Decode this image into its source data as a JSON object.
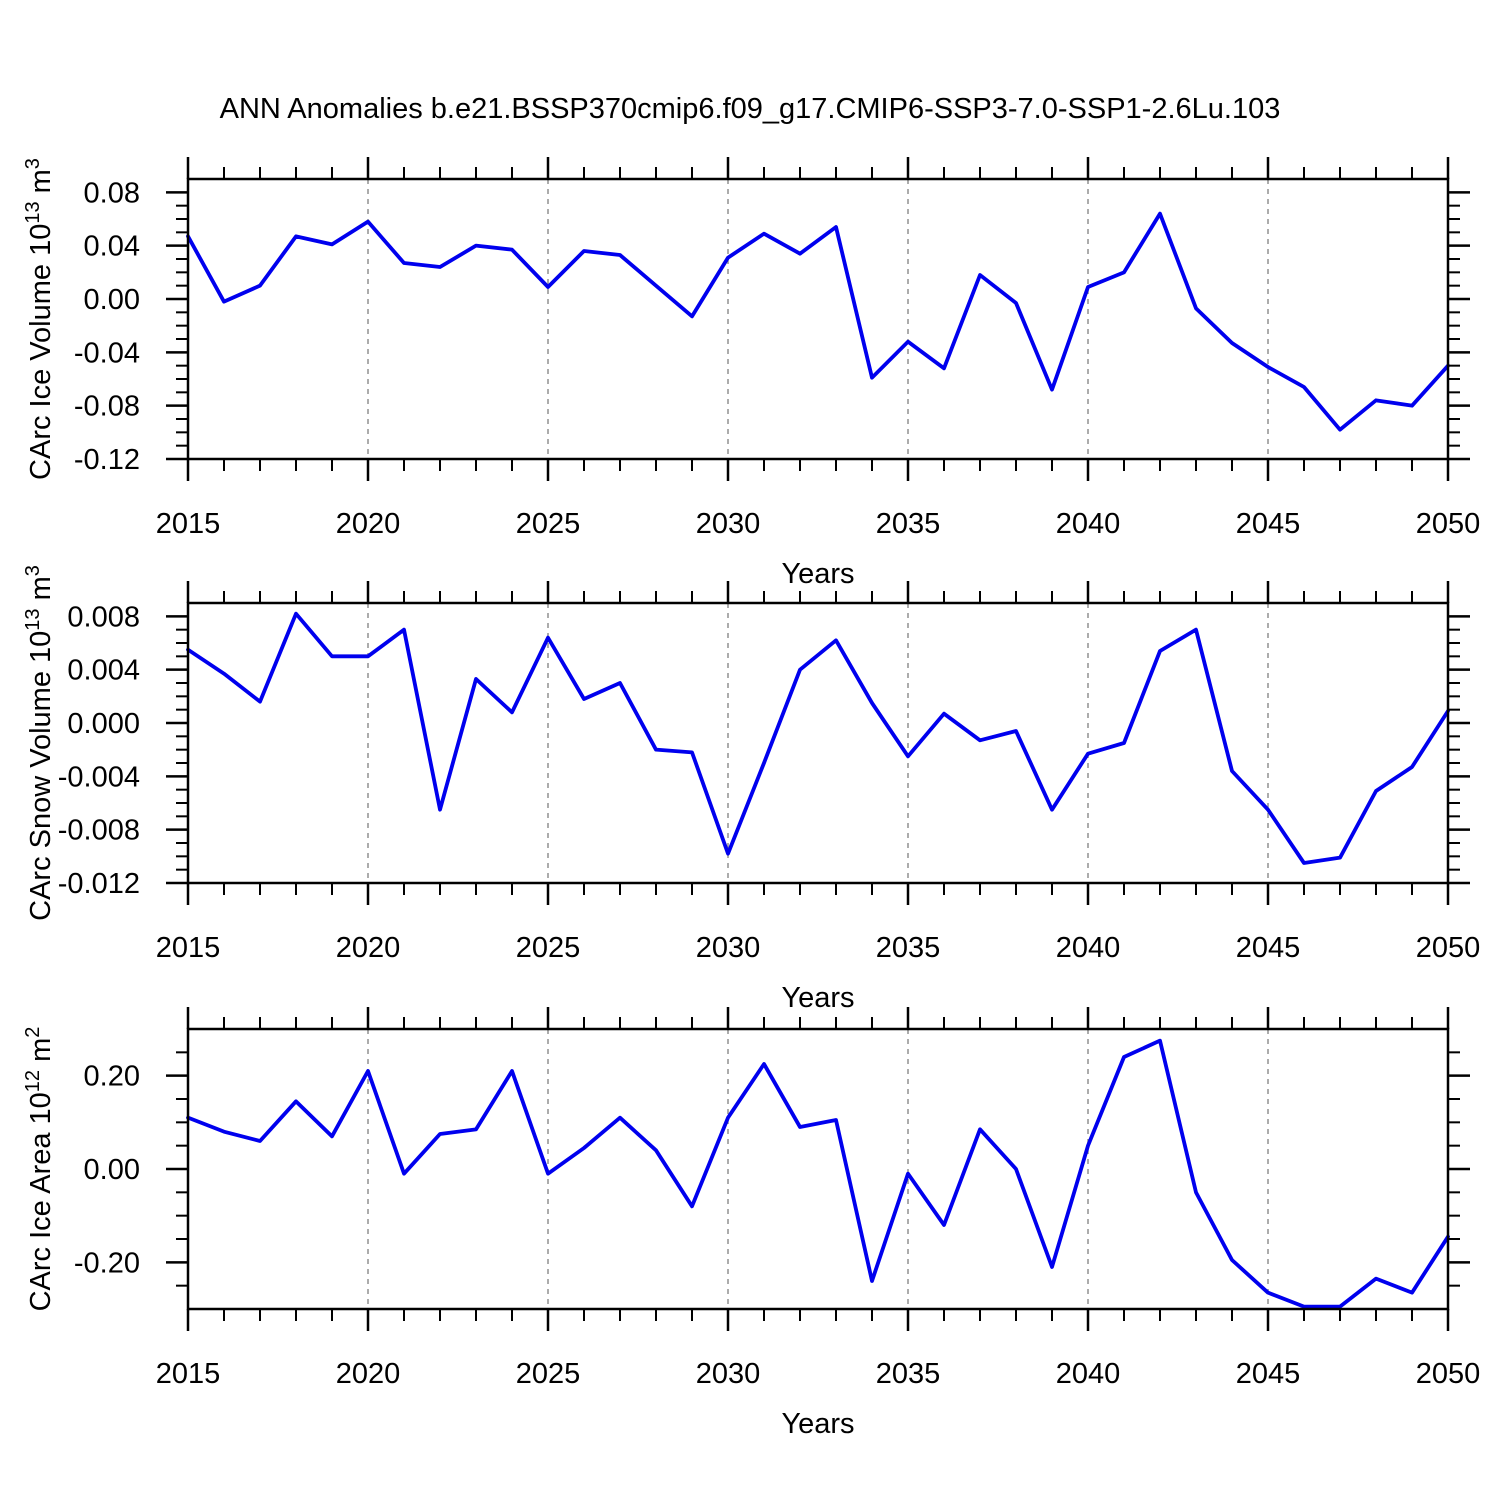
{
  "title": "ANN Anomalies b.e21.BSSP370cmip6.f09_g17.CMIP6-SSP3-7.0-SSP1-2.6Lu.103",
  "style": {
    "line_color": "#0000ee",
    "grid_color": "#888888",
    "frame_color": "#000000",
    "background": "#ffffff"
  },
  "axis": {
    "xlabel": "Years",
    "xlim": [
      2015,
      2050
    ],
    "x_minor_step": 1,
    "gridlines": [
      2020,
      2025,
      2030,
      2035,
      2040,
      2045
    ],
    "x_major": [
      {
        "v": 2015,
        "label": "2015"
      },
      {
        "v": 2020,
        "label": "2020"
      },
      {
        "v": 2025,
        "label": "2025"
      },
      {
        "v": 2030,
        "label": "2030"
      },
      {
        "v": 2035,
        "label": "2035"
      },
      {
        "v": 2040,
        "label": "2040"
      },
      {
        "v": 2045,
        "label": "2045"
      },
      {
        "v": 2050,
        "label": "2050"
      }
    ]
  },
  "chart_data": [
    {
      "type": "line",
      "name": "ice-volume",
      "title": "",
      "xlabel": "Years",
      "ylabel": "CArc Ice Volume 10^13 m^3",
      "ylabel_parts": [
        [
          "CArc Ice Volume 10",
          0
        ],
        [
          "13",
          1
        ],
        [
          " m",
          0
        ],
        [
          "3",
          1
        ]
      ],
      "ylim": [
        -0.12,
        0.09
      ],
      "ytick_minor_step": 0.01,
      "yticks": [
        {
          "v": 0.08,
          "label": "0.08"
        },
        {
          "v": 0.04,
          "label": "0.04"
        },
        {
          "v": 0.0,
          "label": "0.00"
        },
        {
          "v": -0.04,
          "label": "-0.04"
        },
        {
          "v": -0.08,
          "label": "-0.08"
        },
        {
          "v": -0.12,
          "label": "-0.12"
        }
      ],
      "x": [
        2015,
        2016,
        2017,
        2018,
        2019,
        2020,
        2021,
        2022,
        2023,
        2024,
        2025,
        2026,
        2027,
        2028,
        2029,
        2030,
        2031,
        2032,
        2033,
        2034,
        2035,
        2036,
        2037,
        2038,
        2039,
        2040,
        2041,
        2042,
        2043,
        2044,
        2045,
        2046,
        2047,
        2048,
        2049,
        2050
      ],
      "values": [
        0.047,
        -0.002,
        0.01,
        0.047,
        0.041,
        0.058,
        0.027,
        0.024,
        0.04,
        0.037,
        0.009,
        0.036,
        0.033,
        0.01,
        -0.013,
        0.031,
        0.049,
        0.034,
        0.054,
        -0.059,
        -0.032,
        -0.052,
        0.018,
        -0.003,
        -0.068,
        0.009,
        0.02,
        0.064,
        -0.007,
        -0.033,
        -0.051,
        -0.066,
        -0.098,
        -0.076,
        -0.08,
        -0.05
      ]
    },
    {
      "type": "line",
      "name": "snow-volume",
      "title": "",
      "xlabel": "Years",
      "ylabel": "CArc Snow Volume 10^13 m^3",
      "ylabel_parts": [
        [
          "CArc Snow Volume 10",
          0
        ],
        [
          "13",
          1
        ],
        [
          " m",
          0
        ],
        [
          "3",
          1
        ]
      ],
      "ylim": [
        -0.012,
        0.009
      ],
      "ytick_minor_step": 0.001,
      "yticks": [
        {
          "v": 0.008,
          "label": "0.008"
        },
        {
          "v": 0.004,
          "label": "0.004"
        },
        {
          "v": 0.0,
          "label": "0.000"
        },
        {
          "v": -0.004,
          "label": "-0.004"
        },
        {
          "v": -0.008,
          "label": "-0.008"
        },
        {
          "v": -0.012,
          "label": "-0.012"
        }
      ],
      "x": [
        2015,
        2016,
        2017,
        2018,
        2019,
        2020,
        2021,
        2022,
        2023,
        2024,
        2025,
        2026,
        2027,
        2028,
        2029,
        2030,
        2031,
        2032,
        2033,
        2034,
        2035,
        2036,
        2037,
        2038,
        2039,
        2040,
        2041,
        2042,
        2043,
        2044,
        2045,
        2046,
        2047,
        2048,
        2049,
        2050
      ],
      "values": [
        0.0055,
        0.0037,
        0.0016,
        0.0082,
        0.005,
        0.005,
        0.007,
        -0.0065,
        0.0033,
        0.0008,
        0.0064,
        0.0018,
        0.003,
        -0.002,
        -0.0022,
        -0.0098,
        -0.003,
        0.004,
        0.0062,
        0.0015,
        -0.0025,
        0.0007,
        -0.0013,
        -0.0006,
        -0.0065,
        -0.0023,
        -0.0015,
        0.0054,
        0.007,
        -0.0036,
        -0.0065,
        -0.0105,
        -0.0101,
        -0.0051,
        -0.0033,
        0.0009
      ]
    },
    {
      "type": "line",
      "name": "ice-area",
      "title": "",
      "xlabel": "Years",
      "ylabel": "CArc Ice Area 10^12 m^2",
      "ylabel_parts": [
        [
          "CArc Ice Area 10",
          0
        ],
        [
          "12",
          1
        ],
        [
          " m",
          0
        ],
        [
          "2",
          1
        ]
      ],
      "ylim": [
        -0.3,
        0.3
      ],
      "ytick_minor_step": 0.05,
      "yticks": [
        {
          "v": 0.2,
          "label": "0.20"
        },
        {
          "v": 0.0,
          "label": "0.00"
        },
        {
          "v": -0.2,
          "label": "-0.20"
        }
      ],
      "x": [
        2015,
        2016,
        2017,
        2018,
        2019,
        2020,
        2021,
        2022,
        2023,
        2024,
        2025,
        2026,
        2027,
        2028,
        2029,
        2030,
        2031,
        2032,
        2033,
        2034,
        2035,
        2036,
        2037,
        2038,
        2039,
        2040,
        2041,
        2042,
        2043,
        2044,
        2045,
        2046,
        2047,
        2048,
        2049,
        2050
      ],
      "values": [
        0.11,
        0.08,
        0.06,
        0.145,
        0.07,
        0.21,
        -0.01,
        0.075,
        0.085,
        0.21,
        -0.01,
        0.045,
        0.11,
        0.04,
        -0.08,
        0.11,
        0.225,
        0.09,
        0.105,
        -0.24,
        -0.01,
        -0.12,
        0.085,
        0.0,
        -0.21,
        0.05,
        0.24,
        0.275,
        -0.05,
        -0.195,
        -0.265,
        -0.295,
        -0.295,
        -0.235,
        -0.265,
        -0.145
      ]
    }
  ]
}
